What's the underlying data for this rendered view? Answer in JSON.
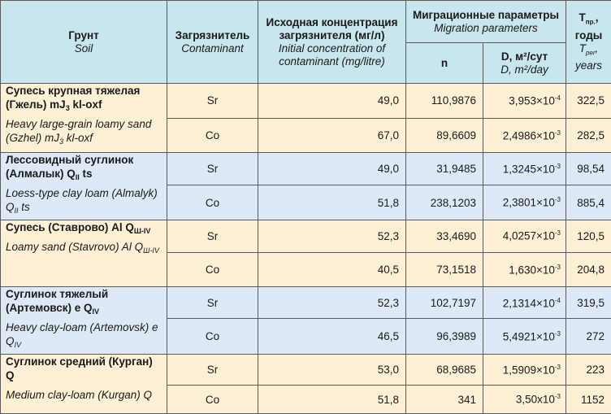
{
  "headers": {
    "soil": {
      "ru": "Грунт",
      "en": "Soil"
    },
    "contaminant": {
      "ru": "Загрязнитель",
      "en": "Contaminant"
    },
    "concentration": {
      "ru": "Исходная концентрация загрязнителя (мг/л)",
      "en": "Initial concentration of contaminant (mg/litre)"
    },
    "migration": {
      "ru": "Миграционные параметры",
      "en": "Migration parameters"
    },
    "n": "n",
    "d": {
      "ru": "D, м²/сут",
      "en": "D, m²/day"
    },
    "t": {
      "ru_prefix": "T",
      "ru_sub": "пр.",
      "ru_suffix": ", годы",
      "en_prefix": "T",
      "en_sub": "per",
      "en_suffix": ", years"
    }
  },
  "rows": [
    {
      "group": 0,
      "soil": {
        "ru": "Супесь крупная тяжелая (Гжель) mJ",
        "ru_sub": "3",
        "ru_tail": " kl-oxf",
        "en": "Heavy large-grain loamy sand (Gzhel) mJ",
        "en_sub": "3",
        "en_tail": " kl-oxf"
      },
      "contaminant": "Sr",
      "concentration": "49,0",
      "n": "110,9876",
      "d_mant": "3,953×10",
      "d_exp": "-4",
      "t": "322,5"
    },
    {
      "group": 0,
      "contaminant": "Co",
      "concentration": "67,0",
      "n": "89,6609",
      "d_mant": "2,4986×10",
      "d_exp": "-3",
      "t": "282,5"
    },
    {
      "group": 1,
      "soil": {
        "ru": "Лессовидный суглинок (Алмалык) Q",
        "ru_sub": "II",
        "ru_tail": " ts",
        "en": "Loess-type clay loam (Almalyk) Q",
        "en_sub": "II",
        "en_tail": " ts"
      },
      "contaminant": "Sr",
      "concentration": "49,0",
      "n": "31,9485",
      "d_mant": "1,3245×10",
      "d_exp": "-3",
      "t": "98,54"
    },
    {
      "group": 1,
      "contaminant": "Co",
      "concentration": "51,8",
      "n": "238,1203",
      "d_mant": "2,3801×10",
      "d_exp": "-3",
      "t": "885,4"
    },
    {
      "group": 2,
      "soil": {
        "ru": "Супесь (Ставрово) Al Q",
        "ru_sub": "Ш-IV",
        "ru_tail": "",
        "en": "Loamy sand (Stavrovo) Al Q",
        "en_sub": "Ш-IV",
        "en_tail": ""
      },
      "contaminant": "Sr",
      "concentration": "52,3",
      "n": "33,4690",
      "d_mant": "4,0257×10",
      "d_exp": "-3",
      "t": "120,5"
    },
    {
      "group": 2,
      "contaminant": "Co",
      "concentration": "40,5",
      "n": "73,1518",
      "d_mant": "1,630×10",
      "d_exp": "-3",
      "t": "204,8"
    },
    {
      "group": 3,
      "soil": {
        "ru": "Суглинок тяжелый (Артемовск) e Q",
        "ru_sub": "IV",
        "ru_tail": "",
        "en": "Heavy clay-loam (Artemovsk) e Q",
        "en_sub": "IV",
        "en_tail": ""
      },
      "contaminant": "Sr",
      "concentration": "52,3",
      "n": "102,7197",
      "d_mant": "2,1314×10",
      "d_exp": "-4",
      "t": "319,5"
    },
    {
      "group": 3,
      "contaminant": "Co",
      "concentration": "46,5",
      "n": "96,3989",
      "d_mant": "5,4921×10",
      "d_exp": "-3",
      "t": "272"
    },
    {
      "group": 4,
      "soil": {
        "ru": "Суглинок средний (Курган) Q",
        "ru_sub": "",
        "ru_tail": "",
        "en": "Medium clay-loam (Kurgan) Q",
        "en_sub": "",
        "en_tail": ""
      },
      "contaminant": "Sr",
      "concentration": "53,0",
      "n": "68,9685",
      "d_mant": "1,5909×10",
      "d_exp": "-3",
      "t": "223"
    },
    {
      "group": 4,
      "contaminant": "Co",
      "concentration": "51,8",
      "n": "341",
      "d_mant": "3,50x10",
      "d_exp": "-3",
      "t": "1152"
    }
  ],
  "colors": {
    "header": "#c8e6ee",
    "group_a": "#fdf0d5",
    "group_b": "#dde9f6",
    "border": "#5a5a5a"
  }
}
